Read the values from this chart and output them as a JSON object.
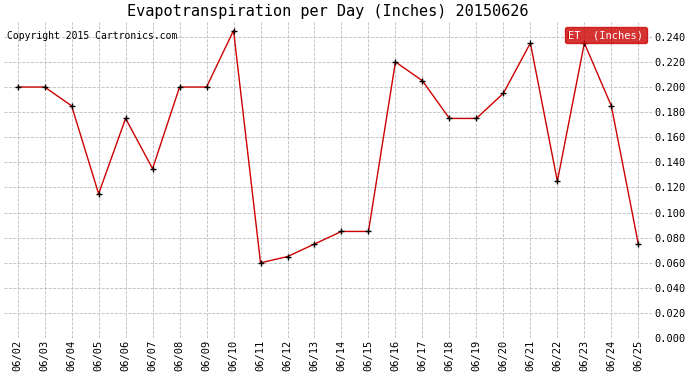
{
  "title": "Evapotranspiration per Day (Inches) 20150626",
  "copyright": "Copyright 2015 Cartronics.com",
  "legend_label": "ET  (Inches)",
  "legend_bg": "#cc0000",
  "legend_text_color": "#ffffff",
  "dates": [
    "06/02",
    "06/03",
    "06/04",
    "06/05",
    "06/06",
    "06/07",
    "06/08",
    "06/09",
    "06/10",
    "06/11",
    "06/12",
    "06/13",
    "06/14",
    "06/15",
    "06/16",
    "06/17",
    "06/18",
    "06/19",
    "06/20",
    "06/21",
    "06/22",
    "06/23",
    "06/24",
    "06/25"
  ],
  "values": [
    0.2,
    0.2,
    0.185,
    0.115,
    0.175,
    0.135,
    0.2,
    0.2,
    0.245,
    0.06,
    0.065,
    0.075,
    0.085,
    0.085,
    0.22,
    0.205,
    0.175,
    0.175,
    0.195,
    0.235,
    0.125,
    0.235,
    0.185,
    0.075
  ],
  "line_color": "#cc0000",
  "marker_color": "#000000",
  "marker_size": 5,
  "ylim": [
    0.0,
    0.252
  ],
  "yticks": [
    0.0,
    0.02,
    0.04,
    0.06,
    0.08,
    0.1,
    0.12,
    0.14,
    0.16,
    0.18,
    0.2,
    0.22,
    0.24
  ],
  "grid_color": "#bbbbbb",
  "bg_color": "#ffffff",
  "title_fontsize": 11,
  "tick_fontsize": 7.5,
  "copyright_fontsize": 7
}
